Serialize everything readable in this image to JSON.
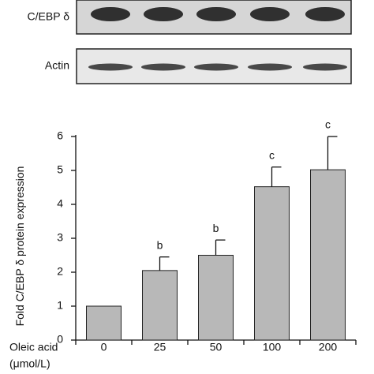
{
  "blots": [
    {
      "label": "C/EBP δ",
      "lanes": 5,
      "band_tone": "dark",
      "band_color": "#222222",
      "panel_bg": "#d6d6d6"
    },
    {
      "label": "Actin",
      "lanes": 5,
      "band_tone": "medium",
      "band_color": "#3a3a3a",
      "panel_bg": "#e8e8e8"
    }
  ],
  "chart_data": {
    "type": "bar",
    "categories": [
      "0",
      "25",
      "50",
      "100",
      "200"
    ],
    "values": [
      1.0,
      2.05,
      2.5,
      4.52,
      5.02
    ],
    "error": [
      0.0,
      0.4,
      0.45,
      0.58,
      0.98
    ],
    "significance": [
      "",
      "b",
      "b",
      "c",
      "c"
    ],
    "ylabel": "Fold C/EBP δ protein expression",
    "xlabel_lines": [
      "Oleic acid",
      "(μmol/L)"
    ],
    "ylim": [
      0,
      6
    ],
    "yticks": [
      0,
      1,
      2,
      3,
      4,
      5,
      6
    ],
    "bar_color": "#b8b8b8",
    "grid": false
  }
}
